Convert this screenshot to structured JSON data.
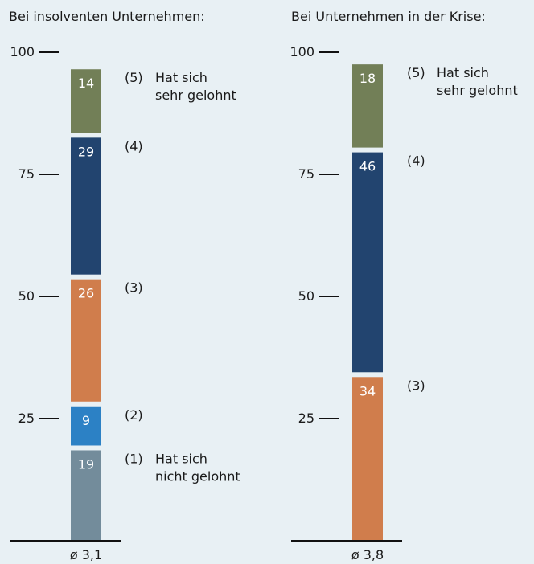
{
  "chart_data": [
    {
      "type": "bar",
      "stacked": true,
      "title": "Bei insolventen Unternehmen:",
      "ylim": [
        0,
        100
      ],
      "yticks": [
        25,
        50,
        75,
        100
      ],
      "average_label": "ø 3,1",
      "segments": [
        {
          "category": "(1)",
          "value": 19,
          "color": "#738c9b"
        },
        {
          "category": "(2)",
          "value": 9,
          "color": "#2c81c5"
        },
        {
          "category": "(3)",
          "value": 26,
          "color": "#d07d4c"
        },
        {
          "category": "(4)",
          "value": 29,
          "color": "#22446f"
        },
        {
          "category": "(5)",
          "value": 14,
          "color": "#727f57"
        }
      ],
      "annotations": [
        {
          "category": "(1)",
          "lines": [
            "Hat sich",
            "nicht gelohnt"
          ]
        },
        {
          "category": "(2)",
          "lines": []
        },
        {
          "category": "(3)",
          "lines": []
        },
        {
          "category": "(4)",
          "lines": []
        },
        {
          "category": "(5)",
          "lines": [
            "Hat sich",
            "sehr gelohnt"
          ]
        }
      ]
    },
    {
      "type": "bar",
      "stacked": true,
      "title": "Bei Unternehmen in der Krise:",
      "ylim": [
        0,
        100
      ],
      "yticks": [
        25,
        50,
        75,
        100
      ],
      "average_label": "ø 3,8",
      "segments": [
        {
          "category": "(3)",
          "value": 34,
          "color": "#d07d4c"
        },
        {
          "category": "(4)",
          "value": 46,
          "color": "#22446f"
        },
        {
          "category": "(5)",
          "value": 18,
          "color": "#727f57"
        }
      ],
      "annotations": [
        {
          "category": "(3)",
          "lines": []
        },
        {
          "category": "(4)",
          "lines": []
        },
        {
          "category": "(5)",
          "lines": [
            "Hat sich",
            "sehr gelohnt"
          ]
        }
      ]
    }
  ]
}
